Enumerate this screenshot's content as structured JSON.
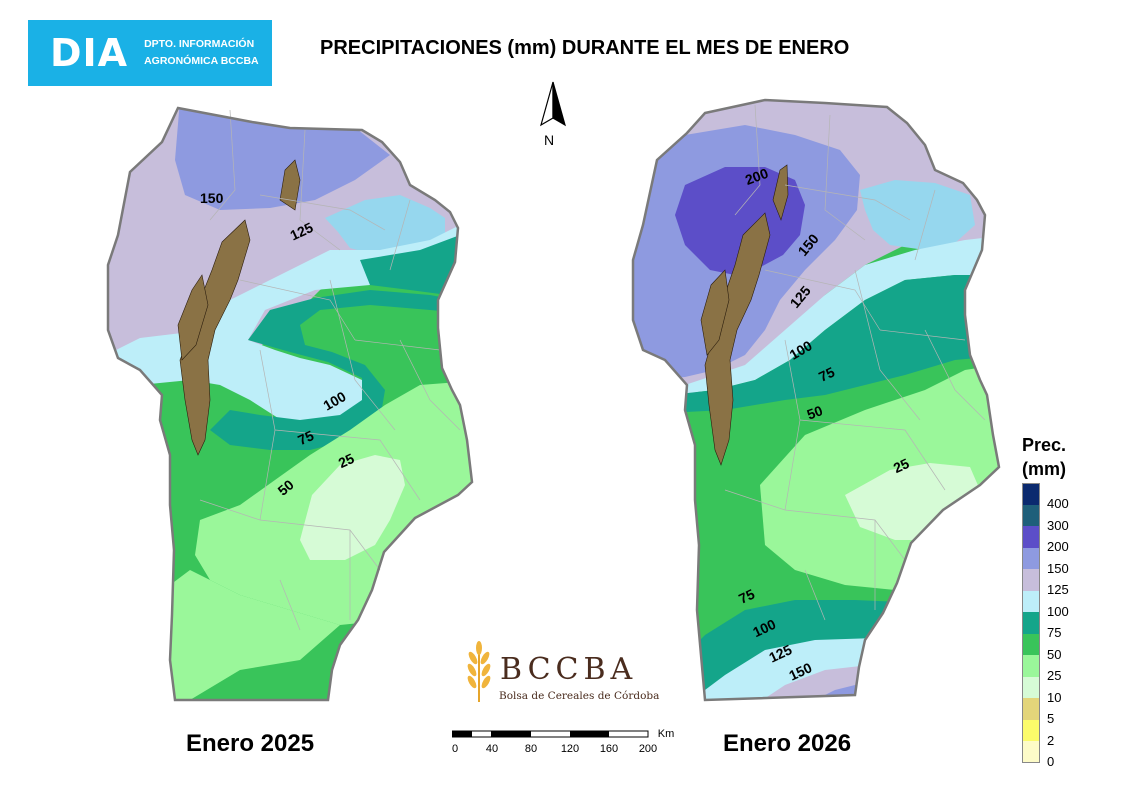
{
  "header": {
    "logo_main": "DIA",
    "logo_line1": "DPTO. INFORMACIÓN",
    "logo_line2": "AGRONÓMICA BCCBA",
    "title": "PRECIPITACIONES (mm) DURANTE EL MES DE ENERO"
  },
  "north_label": "N",
  "maps": [
    {
      "label": "Enero 2025",
      "isolines": [
        "150",
        "125",
        "100",
        "75",
        "50",
        "25"
      ]
    },
    {
      "label": "Enero 2026",
      "isolines": [
        "200",
        "150",
        "125",
        "100",
        "75",
        "50",
        "25",
        "75",
        "100",
        "125",
        "150"
      ]
    }
  ],
  "legend": {
    "title_line1": "Prec.",
    "title_line2": "(mm)",
    "items": [
      {
        "label": "400",
        "color": "#0b2a6f"
      },
      {
        "label": "300",
        "color": "#1f5f7a"
      },
      {
        "label": "200",
        "color": "#5c4ec8"
      },
      {
        "label": "150",
        "color": "#8e9ae0"
      },
      {
        "label": "125",
        "color": "#c7bedb"
      },
      {
        "label": "100",
        "color": "#bdeef9"
      },
      {
        "label": "75",
        "color": "#14a58a"
      },
      {
        "label": "50",
        "color": "#39c45a"
      },
      {
        "label": "25",
        "color": "#9af79a"
      },
      {
        "label": "10",
        "color": "#d6fbd6"
      },
      {
        "label": "5",
        "color": "#e3d57a"
      },
      {
        "label": "2",
        "color": "#fbfb6a"
      },
      {
        "label": "0",
        "color": "#fdfbc8"
      }
    ]
  },
  "scale": {
    "ticks": [
      "0",
      "40",
      "80",
      "120",
      "160",
      "200"
    ],
    "unit": "Km"
  },
  "brand": {
    "name": "BCCBA",
    "subtitle": "Bolsa de Cereales de Córdoba"
  }
}
